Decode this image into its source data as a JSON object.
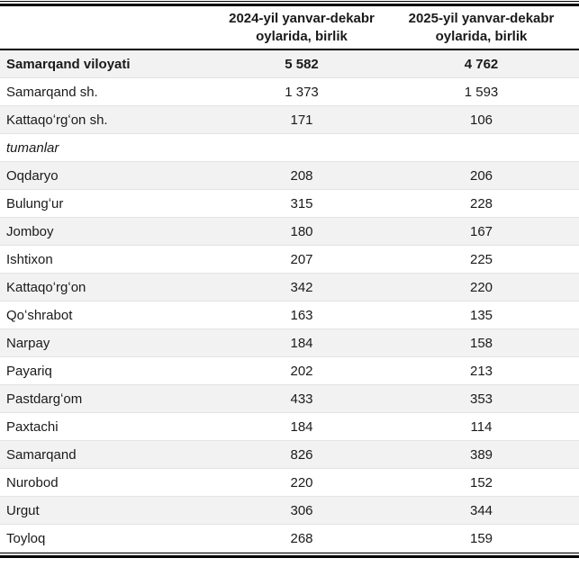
{
  "table": {
    "col_headers": [
      "",
      "2024-yil yanvar-dekabr oylarida, birlik",
      "2025-yil yanvar-dekabr oylarida, birlik"
    ],
    "rows": [
      {
        "name": "Samarqand viloyati",
        "v2024": "5 582",
        "v2025": "4 762",
        "style": "bold"
      },
      {
        "name": "Samarqand sh.",
        "v2024": "1 373",
        "v2025": "1 593",
        "style": ""
      },
      {
        "name": "Kattaqoʻrgʻon sh.",
        "v2024": "171",
        "v2025": "106",
        "style": ""
      },
      {
        "name": "tumanlar",
        "v2024": "",
        "v2025": "",
        "style": "italic"
      },
      {
        "name": "Oqdaryo",
        "v2024": "208",
        "v2025": "206",
        "style": ""
      },
      {
        "name": "Bulungʻur",
        "v2024": "315",
        "v2025": "228",
        "style": ""
      },
      {
        "name": "Jomboy",
        "v2024": "180",
        "v2025": "167",
        "style": ""
      },
      {
        "name": "Ishtixon",
        "v2024": "207",
        "v2025": "225",
        "style": ""
      },
      {
        "name": "Kattaqoʻrgʻon",
        "v2024": "342",
        "v2025": "220",
        "style": ""
      },
      {
        "name": "Qoʻshrabot",
        "v2024": "163",
        "v2025": "135",
        "style": ""
      },
      {
        "name": "Narpay",
        "v2024": "184",
        "v2025": "158",
        "style": ""
      },
      {
        "name": "Payariq",
        "v2024": "202",
        "v2025": "213",
        "style": ""
      },
      {
        "name": "Pastdargʻom",
        "v2024": "433",
        "v2025": "353",
        "style": ""
      },
      {
        "name": "Paxtachi",
        "v2024": "184",
        "v2025": "114",
        "style": ""
      },
      {
        "name": "Samarqand",
        "v2024": "826",
        "v2025": "389",
        "style": ""
      },
      {
        "name": "Nurobod",
        "v2024": "220",
        "v2025": "152",
        "style": ""
      },
      {
        "name": "Urgut",
        "v2024": "306",
        "v2025": "344",
        "style": ""
      },
      {
        "name": "Toyloq",
        "v2024": "268",
        "v2025": "159",
        "style": ""
      }
    ],
    "colors": {
      "rule": "#000000",
      "alt_row_bg": "#f2f2f2",
      "text": "#1a1a1a",
      "row_divider": "#e3e3e3"
    }
  }
}
